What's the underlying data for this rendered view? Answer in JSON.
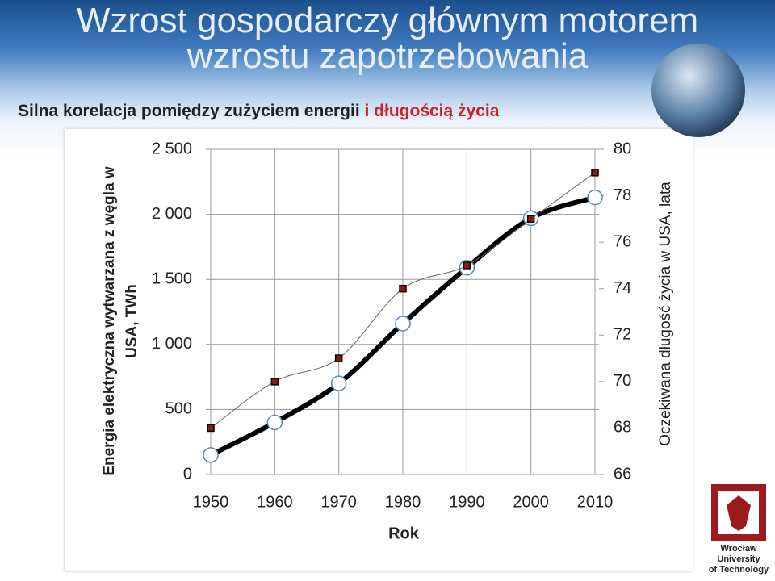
{
  "chart_data": {
    "type": "line",
    "title": "Wzrost gospodarczy głównym motorem wzrostu zapotrzebowania",
    "subtitle": [
      "Silna korelacja pomiędzy zużyciem energii ",
      "i długością życia"
    ],
    "x": [
      1950,
      1960,
      1970,
      1980,
      1990,
      2000,
      2010
    ],
    "xlim": [
      1950,
      2010
    ],
    "xticks": [
      1950,
      1960,
      1970,
      1980,
      1990,
      2000,
      2010
    ],
    "xlabel": "Rok",
    "ylabel": "Energia elektryczna wytwarzana z węgla w USA, TWh",
    "y2label": "Oczekiwana długość życia w USA, lata",
    "ylim": [
      0,
      2500
    ],
    "yticks": [
      0,
      500,
      {
        "value": 1000,
        "label": "1 000"
      },
      {
        "value": 1500,
        "label": "1 500"
      },
      {
        "value": 2000,
        "label": "2 000"
      },
      {
        "value": 2500,
        "label": "2 500"
      }
    ],
    "y2lim": [
      66,
      80
    ],
    "y2ticks": [
      66,
      68,
      70,
      72,
      74,
      76,
      78,
      80
    ],
    "grid": true,
    "series": [
      {
        "color": "#000000",
        "values": [
          150,
          400,
          700,
          1160,
          1590,
          1970,
          2130
        ]
      },
      {
        "color": "#8b1a1a",
        "axis": "y2",
        "values": [
          68,
          70,
          71,
          74,
          75,
          77,
          79
        ]
      }
    ]
  },
  "logo": {
    "lines": [
      "Wrocław",
      "University",
      "of Technology"
    ]
  }
}
